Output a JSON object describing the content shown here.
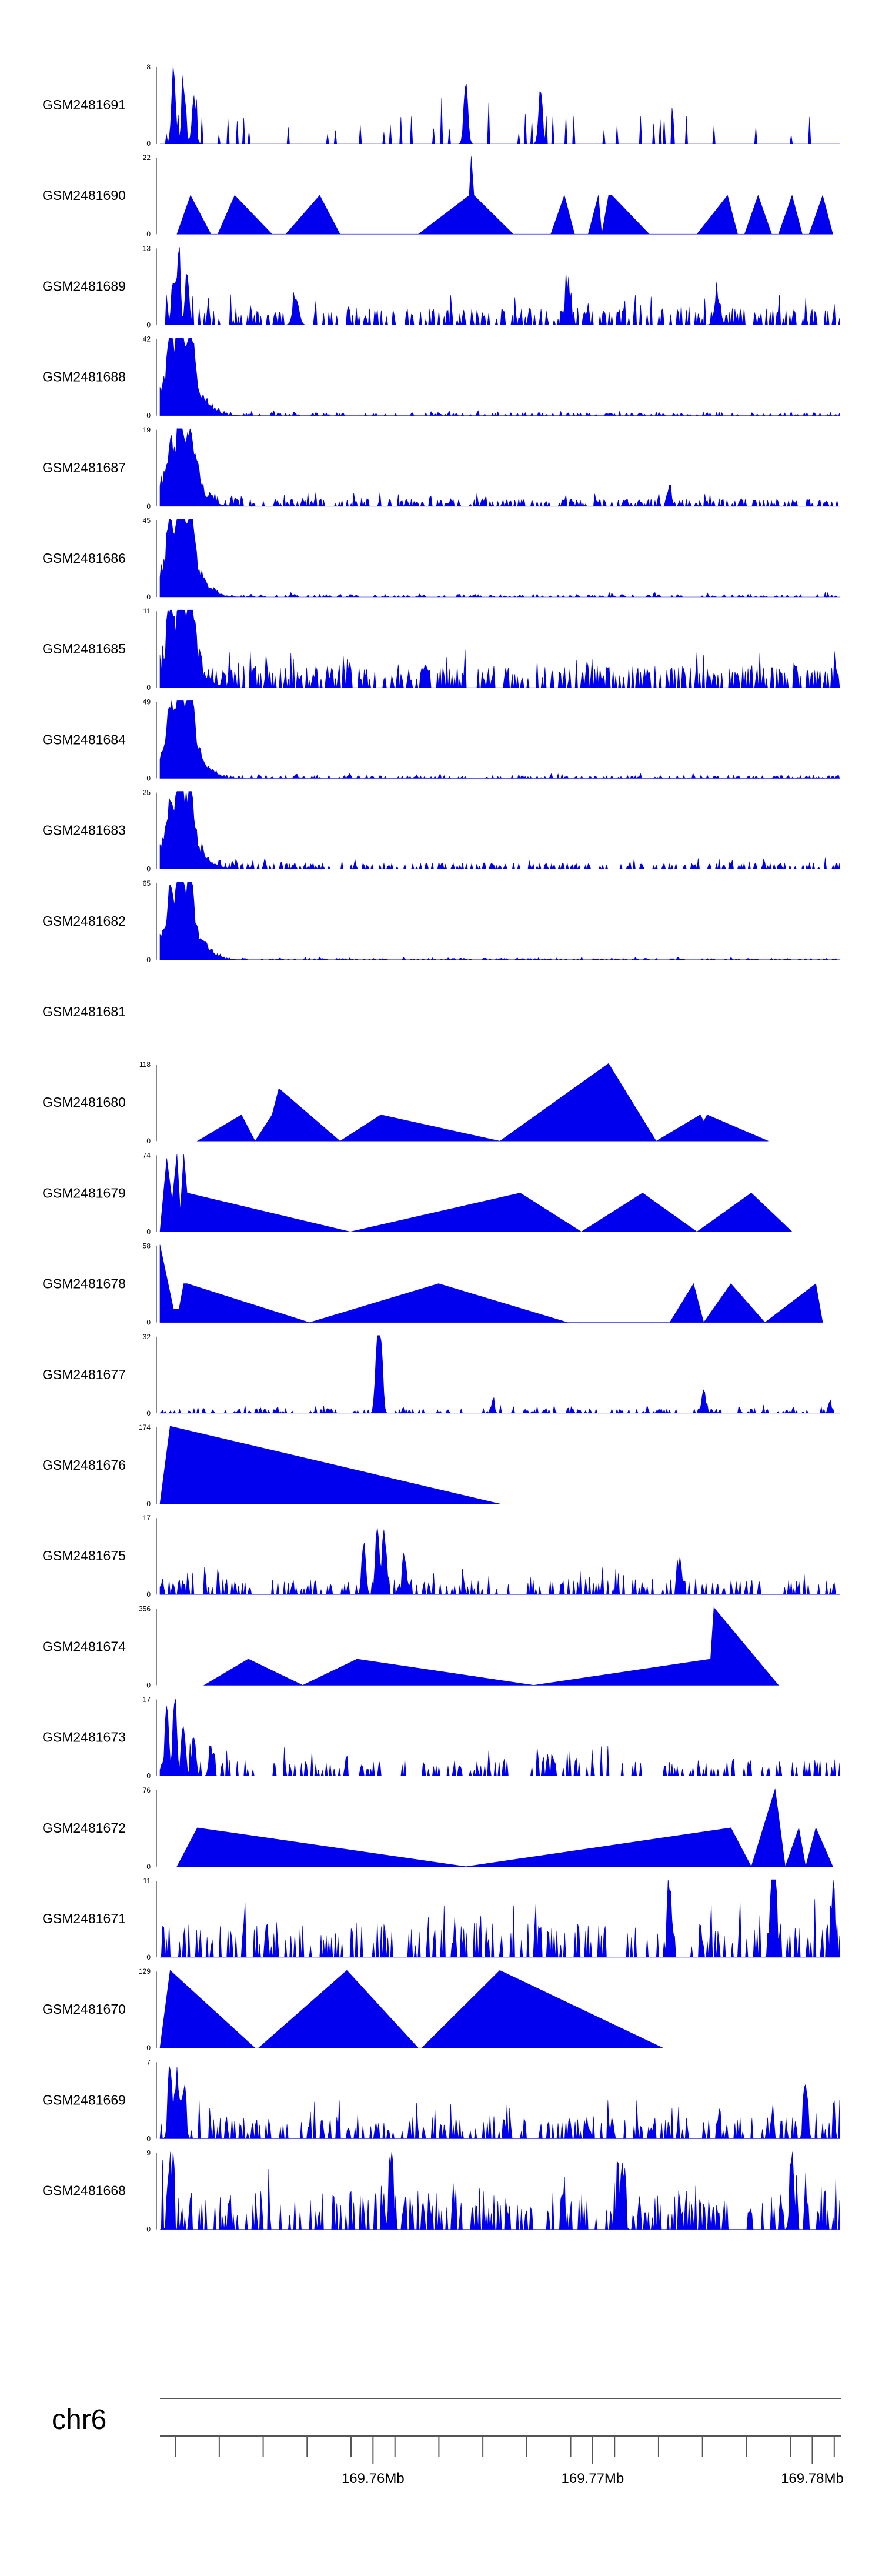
{
  "chart_data": {
    "type": "area",
    "title": "",
    "chromosome": "chr6",
    "x_unit": "Mb",
    "xlim": [
      169.7503,
      169.7813
    ],
    "x_ticks": [
      169.751,
      169.753,
      169.755,
      169.757,
      169.759,
      169.761,
      169.763,
      169.765,
      169.767,
      169.769,
      169.771,
      169.773,
      169.775,
      169.777,
      169.779,
      169.781
    ],
    "x_tick_labels": [
      {
        "value": 169.76,
        "label": "169.76Mb"
      },
      {
        "value": 169.77,
        "label": "169.77Mb"
      },
      {
        "value": 169.78,
        "label": "169.78Mb"
      }
    ],
    "tracks": [
      {
        "name": "GSM2481691",
        "ymax": 8,
        "ymax_label": "8",
        "ymin_label": "0",
        "style": "dense",
        "peaks": [
          [
            0.02,
            8,
            0.004
          ],
          [
            0.035,
            6,
            0.004
          ],
          [
            0.05,
            5,
            0.004
          ],
          [
            0.45,
            7,
            0.004
          ],
          [
            0.56,
            6,
            0.004
          ]
        ],
        "seed": 11,
        "noise": 0.35,
        "density": 0.11,
        "clusterA": 0.0,
        "clusterW": 0.0
      },
      {
        "name": "GSM2481690",
        "ymax": 22,
        "ymax_label": "22",
        "ymin_label": "0",
        "style": "sparse",
        "points": [
          [
            0.025,
            0
          ],
          [
            0.045,
            11
          ],
          [
            0.075,
            0
          ],
          [
            0.085,
            0
          ],
          [
            0.11,
            11
          ],
          [
            0.165,
            0
          ],
          [
            0.185,
            0
          ],
          [
            0.235,
            11
          ],
          [
            0.265,
            0
          ],
          [
            0.38,
            0
          ],
          [
            0.455,
            11
          ],
          [
            0.458,
            22
          ],
          [
            0.462,
            11
          ],
          [
            0.52,
            0
          ],
          [
            0.575,
            0
          ],
          [
            0.595,
            11
          ],
          [
            0.61,
            0
          ],
          [
            0.63,
            0
          ],
          [
            0.645,
            11
          ],
          [
            0.65,
            0
          ],
          [
            0.66,
            11
          ],
          [
            0.665,
            11
          ],
          [
            0.72,
            0
          ],
          [
            0.79,
            0
          ],
          [
            0.835,
            11
          ],
          [
            0.85,
            0
          ],
          [
            0.86,
            0
          ],
          [
            0.88,
            11
          ],
          [
            0.9,
            0
          ],
          [
            0.91,
            0
          ],
          [
            0.93,
            11
          ],
          [
            0.945,
            0
          ],
          [
            0.955,
            0
          ],
          [
            0.975,
            11
          ],
          [
            0.99,
            0
          ]
        ]
      },
      {
        "name": "GSM2481689",
        "ymax": 13,
        "ymax_label": "13",
        "ymin_label": "0",
        "style": "dense",
        "peaks": [
          [
            0.02,
            8,
            0.004
          ],
          [
            0.028,
            13,
            0.003
          ],
          [
            0.04,
            9,
            0.004
          ],
          [
            0.2,
            5,
            0.006
          ],
          [
            0.6,
            6,
            0.006
          ],
          [
            0.82,
            5,
            0.006
          ]
        ],
        "seed": 12,
        "noise": 0.22,
        "density": 0.4,
        "clusterA": 0.0,
        "clusterW": 0.0
      },
      {
        "name": "GSM2481688",
        "ymax": 42,
        "ymax_label": "42",
        "ymin_label": "0",
        "style": "dense",
        "peaks": [
          [
            0.015,
            28,
            0.005
          ],
          [
            0.03,
            42,
            0.006
          ],
          [
            0.045,
            36,
            0.006
          ]
        ],
        "seed": 13,
        "noise": 0.04,
        "density": 0.3,
        "clusterA": 0.8,
        "clusterW": 0.035
      },
      {
        "name": "GSM2481687",
        "ymax": 19,
        "ymax_label": "19",
        "ymin_label": "0",
        "style": "dense",
        "peaks": [
          [
            0.015,
            10,
            0.005
          ],
          [
            0.03,
            19,
            0.006
          ],
          [
            0.045,
            13,
            0.006
          ],
          [
            0.055,
            6,
            0.004
          ],
          [
            0.75,
            4,
            0.004
          ]
        ],
        "seed": 14,
        "noise": 0.1,
        "density": 0.45,
        "clusterA": 0.6,
        "clusterW": 0.035
      },
      {
        "name": "GSM2481686",
        "ymax": 45,
        "ymax_label": "45",
        "ymin_label": "0",
        "style": "dense",
        "peaks": [
          [
            0.015,
            30,
            0.005
          ],
          [
            0.03,
            45,
            0.006
          ],
          [
            0.045,
            38,
            0.006
          ]
        ],
        "seed": 15,
        "noise": 0.035,
        "density": 0.3,
        "clusterA": 0.8,
        "clusterW": 0.035
      },
      {
        "name": "GSM2481685",
        "ymax": 11,
        "ymax_label": "11",
        "ymin_label": "0",
        "style": "dense",
        "peaks": [
          [
            0.015,
            9,
            0.005
          ],
          [
            0.03,
            11,
            0.006
          ],
          [
            0.045,
            10,
            0.006
          ]
        ],
        "seed": 16,
        "noise": 0.28,
        "density": 0.5,
        "clusterA": 0.6,
        "clusterW": 0.035
      },
      {
        "name": "GSM2481684",
        "ymax": 49,
        "ymax_label": "49",
        "ymin_label": "0",
        "style": "dense",
        "peaks": [
          [
            0.015,
            25,
            0.005
          ],
          [
            0.03,
            49,
            0.006
          ],
          [
            0.045,
            40,
            0.006
          ]
        ],
        "seed": 17,
        "noise": 0.04,
        "density": 0.3,
        "clusterA": 0.8,
        "clusterW": 0.035
      },
      {
        "name": "GSM2481683",
        "ymax": 25,
        "ymax_label": "25",
        "ymin_label": "0",
        "style": "dense",
        "peaks": [
          [
            0.015,
            12,
            0.005
          ],
          [
            0.03,
            25,
            0.006
          ],
          [
            0.045,
            15,
            0.006
          ]
        ],
        "seed": 18,
        "noise": 0.08,
        "density": 0.4,
        "clusterA": 0.7,
        "clusterW": 0.035
      },
      {
        "name": "GSM2481682",
        "ymax": 65,
        "ymax_label": "65",
        "ymin_label": "0",
        "style": "dense",
        "peaks": [
          [
            0.015,
            30,
            0.005
          ],
          [
            0.03,
            65,
            0.006
          ],
          [
            0.045,
            45,
            0.006
          ]
        ],
        "seed": 19,
        "noise": 0.02,
        "density": 0.3,
        "clusterA": 0.8,
        "clusterW": 0.035
      },
      {
        "name": "GSM2481681",
        "ymax": 0,
        "ymax_label": "",
        "ymin_label": "",
        "style": "empty"
      },
      {
        "name": "GSM2481680",
        "ymax": 118,
        "ymax_label": "118",
        "ymin_label": "0",
        "style": "sparse",
        "points": [
          [
            0.055,
            0
          ],
          [
            0.12,
            40
          ],
          [
            0.14,
            0
          ],
          [
            0.165,
            40
          ],
          [
            0.175,
            80
          ],
          [
            0.265,
            0
          ],
          [
            0.325,
            40
          ],
          [
            0.5,
            0
          ],
          [
            0.5,
            0
          ],
          [
            0.66,
            118
          ],
          [
            0.73,
            0
          ],
          [
            0.795,
            40
          ],
          [
            0.8,
            30
          ],
          [
            0.805,
            40
          ],
          [
            0.895,
            0
          ]
        ]
      },
      {
        "name": "GSM2481679",
        "ymax": 74,
        "ymax_label": "74",
        "ymin_label": "0",
        "style": "sparse",
        "points": [
          [
            0.0,
            0
          ],
          [
            0.01,
            70
          ],
          [
            0.018,
            30
          ],
          [
            0.025,
            74
          ],
          [
            0.03,
            20
          ],
          [
            0.035,
            74
          ],
          [
            0.04,
            37
          ],
          [
            0.28,
            0
          ],
          [
            0.53,
            37
          ],
          [
            0.62,
            0
          ],
          [
            0.71,
            37
          ],
          [
            0.79,
            0
          ],
          [
            0.87,
            37
          ],
          [
            0.93,
            0
          ]
        ]
      },
      {
        "name": "GSM2481678",
        "ymax": 58,
        "ymax_label": "58",
        "ymin_label": "0",
        "style": "sparse",
        "points": [
          [
            0.0,
            58
          ],
          [
            0.02,
            10
          ],
          [
            0.028,
            10
          ],
          [
            0.035,
            29
          ],
          [
            0.04,
            29
          ],
          [
            0.22,
            0
          ],
          [
            0.41,
            29
          ],
          [
            0.6,
            0
          ],
          [
            0.75,
            0
          ],
          [
            0.785,
            29
          ],
          [
            0.8,
            0
          ],
          [
            0.84,
            29
          ],
          [
            0.89,
            0
          ],
          [
            0.965,
            29
          ],
          [
            0.975,
            0
          ]
        ]
      },
      {
        "name": "GSM2481677",
        "ymax": 32,
        "ymax_label": "32",
        "ymin_label": "0",
        "style": "dense",
        "peaks": [
          [
            0.32,
            32,
            0.004
          ],
          [
            0.325,
            28,
            0.004
          ],
          [
            0.49,
            6,
            0.003
          ],
          [
            0.8,
            10,
            0.004
          ],
          [
            0.985,
            5,
            0.003
          ]
        ],
        "seed": 20,
        "noise": 0.06,
        "density": 0.35,
        "clusterA": 0.0,
        "clusterW": 0.0
      },
      {
        "name": "GSM2481676",
        "ymax": 174,
        "ymax_label": "174",
        "ymin_label": "0",
        "style": "sparse",
        "points": [
          [
            0.0,
            0
          ],
          [
            0.015,
            174
          ],
          [
            0.5,
            0
          ]
        ]
      },
      {
        "name": "GSM2481675",
        "ymax": 17,
        "ymax_label": "17",
        "ymin_label": "0",
        "style": "dense",
        "peaks": [
          [
            0.3,
            12,
            0.004
          ],
          [
            0.32,
            17,
            0.004
          ],
          [
            0.33,
            13,
            0.004
          ],
          [
            0.36,
            9,
            0.004
          ],
          [
            0.765,
            9,
            0.004
          ]
        ],
        "seed": 21,
        "noise": 0.2,
        "density": 0.35,
        "clusterA": 0.0,
        "clusterW": 0.0
      },
      {
        "name": "GSM2481674",
        "ymax": 356,
        "ymax_label": "356",
        "ymin_label": "0",
        "style": "sparse",
        "points": [
          [
            0.065,
            0
          ],
          [
            0.13,
            120
          ],
          [
            0.21,
            0
          ],
          [
            0.29,
            120
          ],
          [
            0.55,
            0
          ],
          [
            0.81,
            120
          ],
          [
            0.815,
            356
          ],
          [
            0.91,
            0
          ]
        ]
      },
      {
        "name": "GSM2481673",
        "ymax": 17,
        "ymax_label": "17",
        "ymin_label": "0",
        "style": "dense",
        "peaks": [
          [
            0.01,
            14,
            0.004
          ],
          [
            0.022,
            17,
            0.004
          ],
          [
            0.035,
            11,
            0.004
          ],
          [
            0.05,
            9,
            0.004
          ],
          [
            0.075,
            7,
            0.004
          ]
        ],
        "seed": 22,
        "noise": 0.22,
        "density": 0.3,
        "clusterA": 0.0,
        "clusterW": 0.0
      },
      {
        "name": "GSM2481672",
        "ymax": 76,
        "ymax_label": "76",
        "ymin_label": "0",
        "style": "sparse",
        "points": [
          [
            0.025,
            0
          ],
          [
            0.055,
            38
          ],
          [
            0.45,
            0
          ],
          [
            0.84,
            38
          ],
          [
            0.87,
            0
          ],
          [
            0.905,
            76
          ],
          [
            0.92,
            0
          ],
          [
            0.94,
            38
          ],
          [
            0.95,
            0
          ],
          [
            0.965,
            38
          ],
          [
            0.99,
            0
          ]
        ]
      },
      {
        "name": "GSM2481671",
        "ymax": 11,
        "ymax_label": "11",
        "ymin_label": "0",
        "style": "dense",
        "peaks": [
          [
            0.75,
            11,
            0.004
          ],
          [
            0.9,
            11,
            0.004
          ],
          [
            0.905,
            9,
            0.004
          ],
          [
            0.99,
            9,
            0.004
          ]
        ],
        "seed": 23,
        "noise": 0.45,
        "density": 0.35,
        "clusterA": 0.0,
        "clusterW": 0.0
      },
      {
        "name": "GSM2481670",
        "ymax": 129,
        "ymax_label": "129",
        "ymin_label": "0",
        "style": "sparse",
        "points": [
          [
            0.0,
            0
          ],
          [
            0.015,
            129
          ],
          [
            0.14,
            0
          ],
          [
            0.145,
            0
          ],
          [
            0.275,
            129
          ],
          [
            0.38,
            0
          ],
          [
            0.385,
            0
          ],
          [
            0.5,
            129
          ],
          [
            0.74,
            0
          ]
        ]
      },
      {
        "name": "GSM2481669",
        "ymax": 7,
        "ymax_label": "7",
        "ymin_label": "0",
        "style": "dense",
        "peaks": [
          [
            0.015,
            7,
            0.004
          ],
          [
            0.025,
            6,
            0.004
          ],
          [
            0.035,
            5,
            0.004
          ],
          [
            0.95,
            5,
            0.004
          ]
        ],
        "seed": 24,
        "noise": 0.28,
        "density": 0.4,
        "clusterA": 0.0,
        "clusterW": 0.0
      },
      {
        "name": "GSM2481668",
        "ymax": 9,
        "ymax_label": "9",
        "ymin_label": "0",
        "style": "dense",
        "peaks": [
          [
            0.015,
            9,
            0.004
          ],
          [
            0.34,
            9,
            0.004
          ],
          [
            0.68,
            9,
            0.004
          ],
          [
            0.93,
            9,
            0.004
          ]
        ],
        "seed": 25,
        "noise": 0.5,
        "density": 0.4,
        "clusterA": 0.0,
        "clusterW": 0.0
      }
    ]
  }
}
